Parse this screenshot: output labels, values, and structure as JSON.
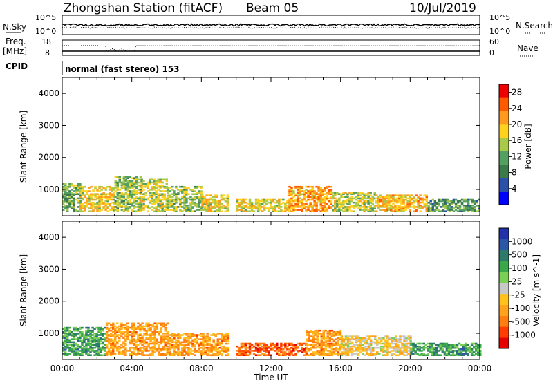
{
  "header": {
    "station": "Zhongshan Station (fitACF)",
    "beam": "Beam 05",
    "date": "10/Jul/2019"
  },
  "top_panels": {
    "nsky_label": "N.Sky",
    "nsky_ticks": [
      "10^5",
      "10^0"
    ],
    "nsearch_label": "N.Search",
    "nsearch_ticks": [
      "10^5",
      "10^0"
    ],
    "freq_label_line1": "Freq.",
    "freq_label_line2": "[MHz]",
    "freq_ticks": [
      "18",
      "8"
    ],
    "nave_label": "Nave",
    "nave_ticks": [
      "60",
      "0"
    ],
    "cpid_label": "CPID",
    "cpid_text": "normal (fast stereo) 153"
  },
  "colors": {
    "power_scale": [
      "#0000ff",
      "#2c4fa8",
      "#3c7a4c",
      "#55a060",
      "#a9c94b",
      "#ffd21f",
      "#ff9a1f",
      "#ff5a00",
      "#ee0000"
    ],
    "velocity_scale": [
      "#2232a8",
      "#2d56a6",
      "#2e7a6a",
      "#3aa84a",
      "#7bcf55",
      "#c8c8c8",
      "#ffc21c",
      "#ffa21c",
      "#ff7e10",
      "#ff3d00",
      "#e60000"
    ]
  },
  "chart_data": [
    {
      "type": "heatmap",
      "name": "power",
      "xlabel": "Time UT",
      "ylabel": "Slant Range [km]",
      "x_ticks": [
        "00:00",
        "04:00",
        "08:00",
        "12:00",
        "16:00",
        "20:00",
        "00:00"
      ],
      "x_range_hours": [
        0,
        24
      ],
      "y_ticks": [
        "1000",
        "2000",
        "3000",
        "4000"
      ],
      "ylim": [
        180,
        4500
      ],
      "colorbar_label": "Power [dB]",
      "colorbar_ticks": [
        "4",
        "8",
        "12",
        "16",
        "20",
        "24",
        "28"
      ],
      "colorbar_range": [
        0,
        30
      ],
      "echo_regions": [
        {
          "t_start": 0.0,
          "t_end": 1.0,
          "r_min": 300,
          "r_max": 1200,
          "level": 12
        },
        {
          "t_start": 1.0,
          "t_end": 3.0,
          "r_min": 300,
          "r_max": 1100,
          "level": 18
        },
        {
          "t_start": 3.0,
          "t_end": 4.5,
          "r_min": 300,
          "r_max": 1400,
          "level": 14
        },
        {
          "t_start": 4.5,
          "t_end": 6.0,
          "r_min": 300,
          "r_max": 1300,
          "level": 16
        },
        {
          "t_start": 6.0,
          "t_end": 8.0,
          "r_min": 300,
          "r_max": 1100,
          "level": 14
        },
        {
          "t_start": 8.0,
          "t_end": 9.5,
          "r_min": 300,
          "r_max": 800,
          "level": 18
        },
        {
          "t_start": 10.0,
          "t_end": 13.0,
          "r_min": 300,
          "r_max": 700,
          "level": 18
        },
        {
          "t_start": 13.0,
          "t_end": 15.5,
          "r_min": 300,
          "r_max": 1100,
          "level": 22
        },
        {
          "t_start": 15.5,
          "t_end": 18.0,
          "r_min": 300,
          "r_max": 900,
          "level": 16
        },
        {
          "t_start": 18.0,
          "t_end": 21.0,
          "r_min": 300,
          "r_max": 800,
          "level": 20
        },
        {
          "t_start": 21.0,
          "t_end": 24.0,
          "r_min": 300,
          "r_max": 700,
          "level": 10
        }
      ]
    },
    {
      "type": "heatmap",
      "name": "velocity",
      "xlabel": "Time UT",
      "ylabel": "Slant Range [km]",
      "x_ticks": [
        "00:00",
        "04:00",
        "08:00",
        "12:00",
        "16:00",
        "20:00",
        "00:00"
      ],
      "x_range_hours": [
        0,
        24
      ],
      "y_ticks": [
        "1000",
        "2000",
        "3000",
        "4000"
      ],
      "ylim": [
        180,
        4500
      ],
      "colorbar_label": "Velocity [m s^-1]",
      "colorbar_ticks": [
        "1000",
        "500",
        "100",
        "25",
        "-25",
        "-100",
        "-500",
        "-1000"
      ],
      "echo_regions": [
        {
          "t_start": 0.0,
          "t_end": 2.5,
          "r_min": 300,
          "r_max": 1200,
          "level": 100
        },
        {
          "t_start": 2.5,
          "t_end": 6.0,
          "r_min": 300,
          "r_max": 1300,
          "level": -100
        },
        {
          "t_start": 6.0,
          "t_end": 9.5,
          "r_min": 300,
          "r_max": 1000,
          "level": -100
        },
        {
          "t_start": 10.0,
          "t_end": 14.0,
          "r_min": 300,
          "r_max": 700,
          "level": -500
        },
        {
          "t_start": 14.0,
          "t_end": 16.0,
          "r_min": 300,
          "r_max": 1100,
          "level": -100
        },
        {
          "t_start": 16.0,
          "t_end": 20.0,
          "r_min": 300,
          "r_max": 900,
          "level": -25
        },
        {
          "t_start": 20.0,
          "t_end": 24.0,
          "r_min": 300,
          "r_max": 700,
          "level": 100
        }
      ]
    }
  ]
}
